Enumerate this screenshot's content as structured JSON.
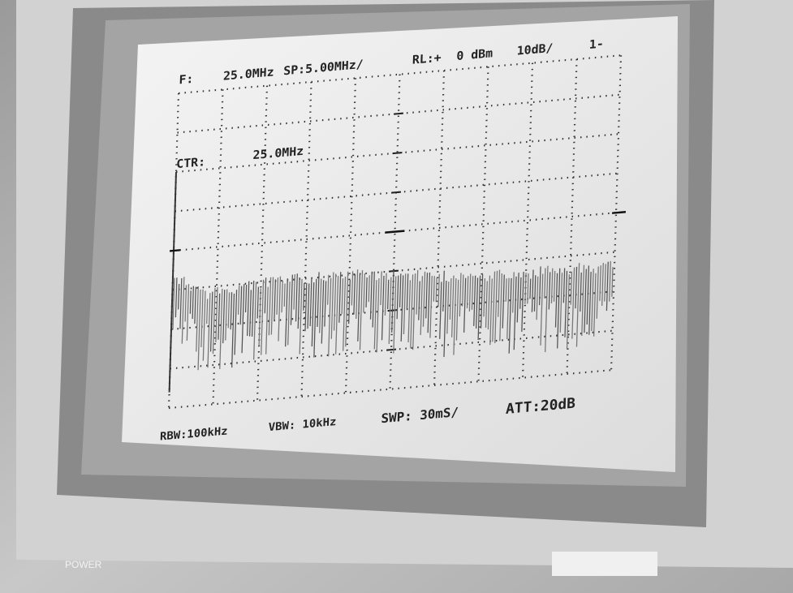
{
  "screen": {
    "header": {
      "f_label": "F:",
      "frequency": "25.0MHz",
      "span": "SP:5.00MHz/",
      "ref_level_label": "RL:+",
      "ref_level": "0 dBm",
      "scale": "10dB/",
      "marker": "1-"
    },
    "center": {
      "label": "CTR:",
      "value": "25.0MHz"
    },
    "footer": {
      "rbw": "RBW:100kHz",
      "vbw": "VBW: 10kHz",
      "sweep": "SWP: 30mS/",
      "attenuation": "ATT:20dB"
    }
  },
  "panel": {
    "power_label": "POWER"
  }
}
